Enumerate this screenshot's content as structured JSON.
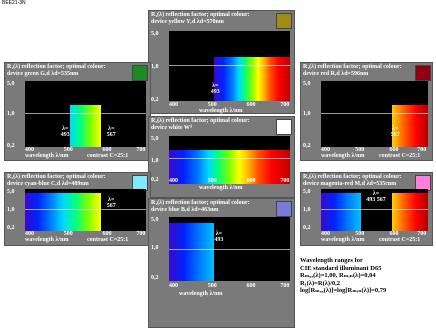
{
  "corner_label": "BEE21-3N",
  "panels": {
    "yellow": {
      "h1": "R₁(λ) reflection factor; optimal colour:",
      "h2": "device yellow Yᵣd   λd=570nm",
      "swatch": "#9e8b18",
      "m1": "λ=",
      "m2": "493"
    },
    "green": {
      "h1": "R₁(λ) reflection factor; optimal colour:",
      "h2": "device green Gᵣd   λd=535nm",
      "swatch": "#1c8c22",
      "m1": "λ=",
      "m2": "493",
      "m3": "λ=",
      "m4": "567"
    },
    "red": {
      "h1": "R₁(λ) reflection factor; optimal colour:",
      "h2": "device red Rᵣd   λd=596nm",
      "swatch": "#8f0014",
      "m1": "λ=",
      "m2": "567"
    },
    "white": {
      "h1": "R₁(λ) reflection factor; optimal colour:",
      "h2": "device white Wᵈ",
      "swatch": "#ffffff"
    },
    "cyan": {
      "h1": "R₁(λ) reflection factor; optimal colour:",
      "h2": "device cyan-blue Cᵣd   λd=489nm",
      "swatch": "#7fe9ff",
      "m1": "λ=",
      "m2": "567"
    },
    "magenta": {
      "h1": "R₁(λ) reflection factor; optimal colour:",
      "h2": "device magenta-red Mᵣd   λd=535cnm",
      "swatch": "#ff7fe0",
      "m1": "λ=",
      "m2": "493  567"
    },
    "blue": {
      "h1": "R₁(λ) reflection factor; optimal colour:",
      "h2": "device blue Bᵣd   λd=463nm",
      "swatch": "#7a7ad8",
      "m1": "λ=",
      "m2": "493"
    }
  },
  "axes": {
    "y_top": "5,0",
    "y_mid": "1,0",
    "y_bot": "0,2",
    "x_ticks": [
      "400",
      "500",
      "600",
      "700"
    ],
    "x_label": "wavelength λ/nm",
    "contrast": "contrast C=25:1"
  },
  "note": {
    "l1": "Wavelength ranges for",
    "l2": "CIE standard illuminant D65",
    "l3": "Rₘₐₓ(λ)=1,00, Rₘᵢₙ(λ)=0,04",
    "l4": "R₁(λ)=R(λ)/0,2",
    "l5": "log[Rₘₐₓ(λ)]=log[Rₘᵢₙ(λ)]=0,79"
  },
  "colors": {
    "panel_bg": "#7a7a7a",
    "plot_bg": "#000000"
  }
}
